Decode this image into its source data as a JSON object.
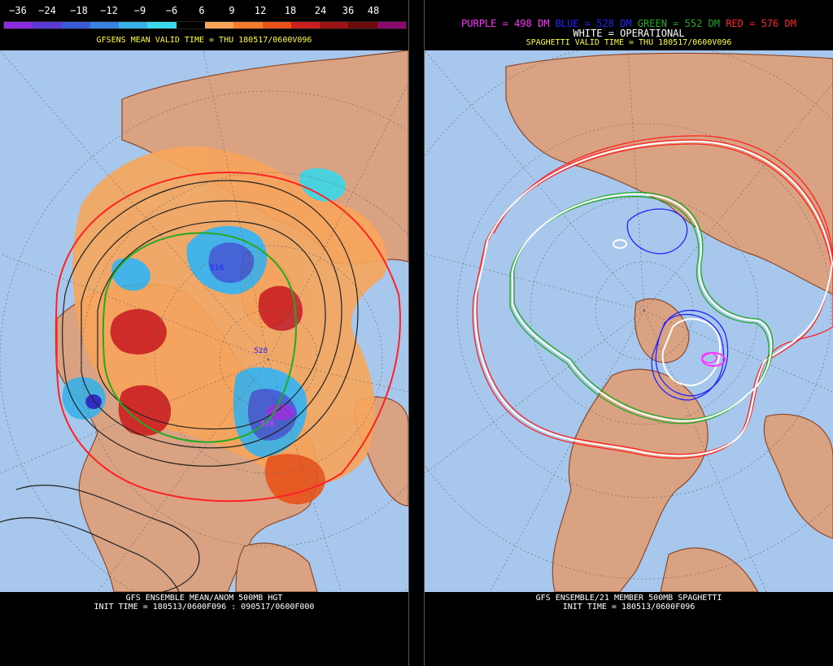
{
  "left_panel": {
    "colorbar": {
      "labels": [
        "−36",
        "−24",
        "−18",
        "−12",
        "−9",
        "−6",
        "6",
        "9",
        "12",
        "18",
        "24",
        "36",
        "48"
      ],
      "colors": [
        "#8a2be2",
        "#5b3bd6",
        "#3a5ad6",
        "#3a82e0",
        "#3ab2e8",
        "#3ad8e8",
        "#000000",
        "#f7a55a",
        "#f47c2a",
        "#e8531a",
        "#cc2020",
        "#9a1414",
        "#6b0a0a",
        "#8a0a70"
      ]
    },
    "title": "GFSENS MEAN VALID TIME = THU 180517/0600V096",
    "contour_labels": [
      "516",
      "528",
      "528"
    ],
    "footer_line1": "GFS ENSEMBLE MEAN/ANOM 500MB HGT",
    "footer_line2": "INIT TIME = 180513/0600F096 : 090517/0600F000"
  },
  "right_panel": {
    "legend": {
      "purple": "PURPLE = 498 DM",
      "blue": "BLUE = 528 DM",
      "green": "GREEN = 552 DM",
      "red": "RED = 576 DM",
      "white": "WHITE = OPERATIONAL"
    },
    "title": "SPAGHETTI VALID TIME = THU 180517/0600V096",
    "footer_line1": "GFS ENSEMBLE/21 MEMBER 500MB SPAGHETTI",
    "footer_line2": "INIT TIME = 180513/0600F096"
  },
  "colors": {
    "ocean": "#a7c8ec",
    "land": "#d9a283",
    "coast": "#8b4a2b",
    "purple": "#ff33ff",
    "blue": "#2222ff",
    "green": "#22aa22",
    "red": "#ff2222",
    "white": "#ffffff",
    "title_yellow": "#ffff33"
  }
}
